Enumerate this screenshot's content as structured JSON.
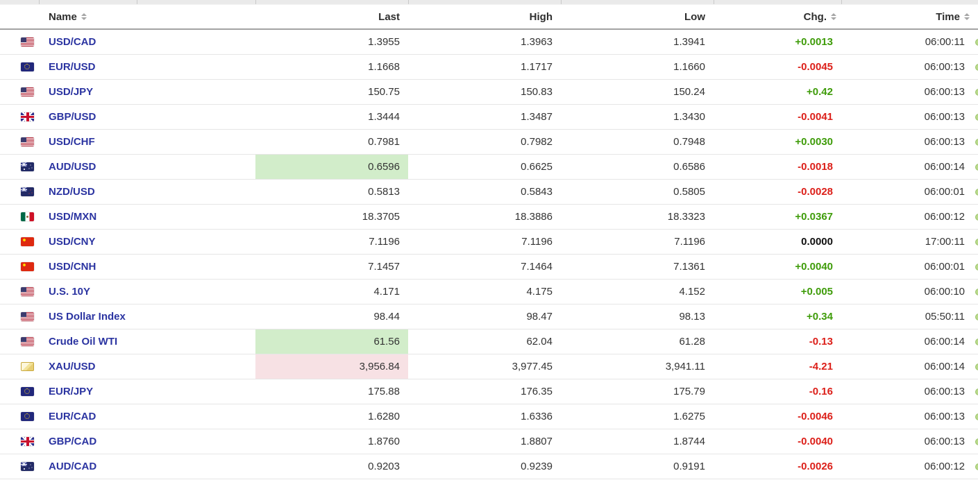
{
  "header": {
    "columns": [
      {
        "key": "name",
        "label": "Name",
        "sortable": true,
        "align": "left"
      },
      {
        "key": "last",
        "label": "Last",
        "sortable": false,
        "align": "right"
      },
      {
        "key": "high",
        "label": "High",
        "sortable": false,
        "align": "right"
      },
      {
        "key": "low",
        "label": "Low",
        "sortable": false,
        "align": "right"
      },
      {
        "key": "chg",
        "label": "Chg.",
        "sortable": true,
        "align": "right"
      },
      {
        "key": "time",
        "label": "Time",
        "sortable": true,
        "align": "right"
      }
    ]
  },
  "rows": [
    {
      "flag": "us-flag-icon",
      "name": "USD/CAD",
      "last": "1.3955",
      "high": "1.3963",
      "low": "1.3941",
      "chg": "+0.0013",
      "chg_dir": "up",
      "time": "06:00:11",
      "last_highlight": null
    },
    {
      "flag": "eu-flag-icon",
      "name": "EUR/USD",
      "last": "1.1668",
      "high": "1.1717",
      "low": "1.1660",
      "chg": "-0.0045",
      "chg_dir": "down",
      "time": "06:00:13",
      "last_highlight": null
    },
    {
      "flag": "us-flag-icon",
      "name": "USD/JPY",
      "last": "150.75",
      "high": "150.83",
      "low": "150.24",
      "chg": "+0.42",
      "chg_dir": "up",
      "time": "06:00:13",
      "last_highlight": null
    },
    {
      "flag": "uk-flag-icon",
      "name": "GBP/USD",
      "last": "1.3444",
      "high": "1.3487",
      "low": "1.3430",
      "chg": "-0.0041",
      "chg_dir": "down",
      "time": "06:00:13",
      "last_highlight": null
    },
    {
      "flag": "us-flag-icon",
      "name": "USD/CHF",
      "last": "0.7981",
      "high": "0.7982",
      "low": "0.7948",
      "chg": "+0.0030",
      "chg_dir": "up",
      "time": "06:00:13",
      "last_highlight": null
    },
    {
      "flag": "au-flag-icon",
      "name": "AUD/USD",
      "last": "0.6596",
      "high": "0.6625",
      "low": "0.6586",
      "chg": "-0.0018",
      "chg_dir": "down",
      "time": "06:00:14",
      "last_highlight": "up"
    },
    {
      "flag": "nz-flag-icon",
      "name": "NZD/USD",
      "last": "0.5813",
      "high": "0.5843",
      "low": "0.5805",
      "chg": "-0.0028",
      "chg_dir": "down",
      "time": "06:00:01",
      "last_highlight": null
    },
    {
      "flag": "mx-flag-icon",
      "name": "USD/MXN",
      "last": "18.3705",
      "high": "18.3886",
      "low": "18.3323",
      "chg": "+0.0367",
      "chg_dir": "up",
      "time": "06:00:12",
      "last_highlight": null
    },
    {
      "flag": "cn-flag-icon",
      "name": "USD/CNY",
      "last": "7.1196",
      "high": "7.1196",
      "low": "7.1196",
      "chg": "0.0000",
      "chg_dir": "flat",
      "time": "17:00:11",
      "last_highlight": null
    },
    {
      "flag": "cn-flag-icon",
      "name": "USD/CNH",
      "last": "7.1457",
      "high": "7.1464",
      "low": "7.1361",
      "chg": "+0.0040",
      "chg_dir": "up",
      "time": "06:00:01",
      "last_highlight": null
    },
    {
      "flag": "us-flag-icon",
      "name": "U.S. 10Y",
      "last": "4.171",
      "high": "4.175",
      "low": "4.152",
      "chg": "+0.005",
      "chg_dir": "up",
      "time": "06:00:10",
      "last_highlight": null
    },
    {
      "flag": "us-flag-icon",
      "name": "US Dollar Index",
      "last": "98.44",
      "high": "98.47",
      "low": "98.13",
      "chg": "+0.34",
      "chg_dir": "up",
      "time": "05:50:11",
      "last_highlight": null
    },
    {
      "flag": "us-flag-icon",
      "name": "Crude Oil WTI",
      "last": "61.56",
      "high": "62.04",
      "low": "61.28",
      "chg": "-0.13",
      "chg_dir": "down",
      "time": "06:00:14",
      "last_highlight": "up"
    },
    {
      "flag": "gold-bar-icon",
      "name": "XAU/USD",
      "last": "3,956.84",
      "high": "3,977.45",
      "low": "3,941.11",
      "chg": "-4.21",
      "chg_dir": "down",
      "time": "06:00:14",
      "last_highlight": "down"
    },
    {
      "flag": "eu-flag-icon",
      "name": "EUR/JPY",
      "last": "175.88",
      "high": "176.35",
      "low": "175.79",
      "chg": "-0.16",
      "chg_dir": "down",
      "time": "06:00:13",
      "last_highlight": null
    },
    {
      "flag": "eu-flag-icon",
      "name": "EUR/CAD",
      "last": "1.6280",
      "high": "1.6336",
      "low": "1.6275",
      "chg": "-0.0046",
      "chg_dir": "down",
      "time": "06:00:13",
      "last_highlight": null
    },
    {
      "flag": "uk-flag-icon",
      "name": "GBP/CAD",
      "last": "1.8760",
      "high": "1.8807",
      "low": "1.8744",
      "chg": "-0.0040",
      "chg_dir": "down",
      "time": "06:00:13",
      "last_highlight": null
    },
    {
      "flag": "au-flag-icon",
      "name": "AUD/CAD",
      "last": "0.9203",
      "high": "0.9239",
      "low": "0.9191",
      "chg": "-0.0026",
      "chg_dir": "down",
      "time": "06:00:12",
      "last_highlight": null
    }
  ],
  "colors": {
    "positive": "#3f9c0a",
    "negative": "#dc1f19",
    "neutral": "#111111",
    "name_link": "#2b34a1",
    "highlight_up": "#d2edca",
    "highlight_down": "#f7e1e4"
  }
}
